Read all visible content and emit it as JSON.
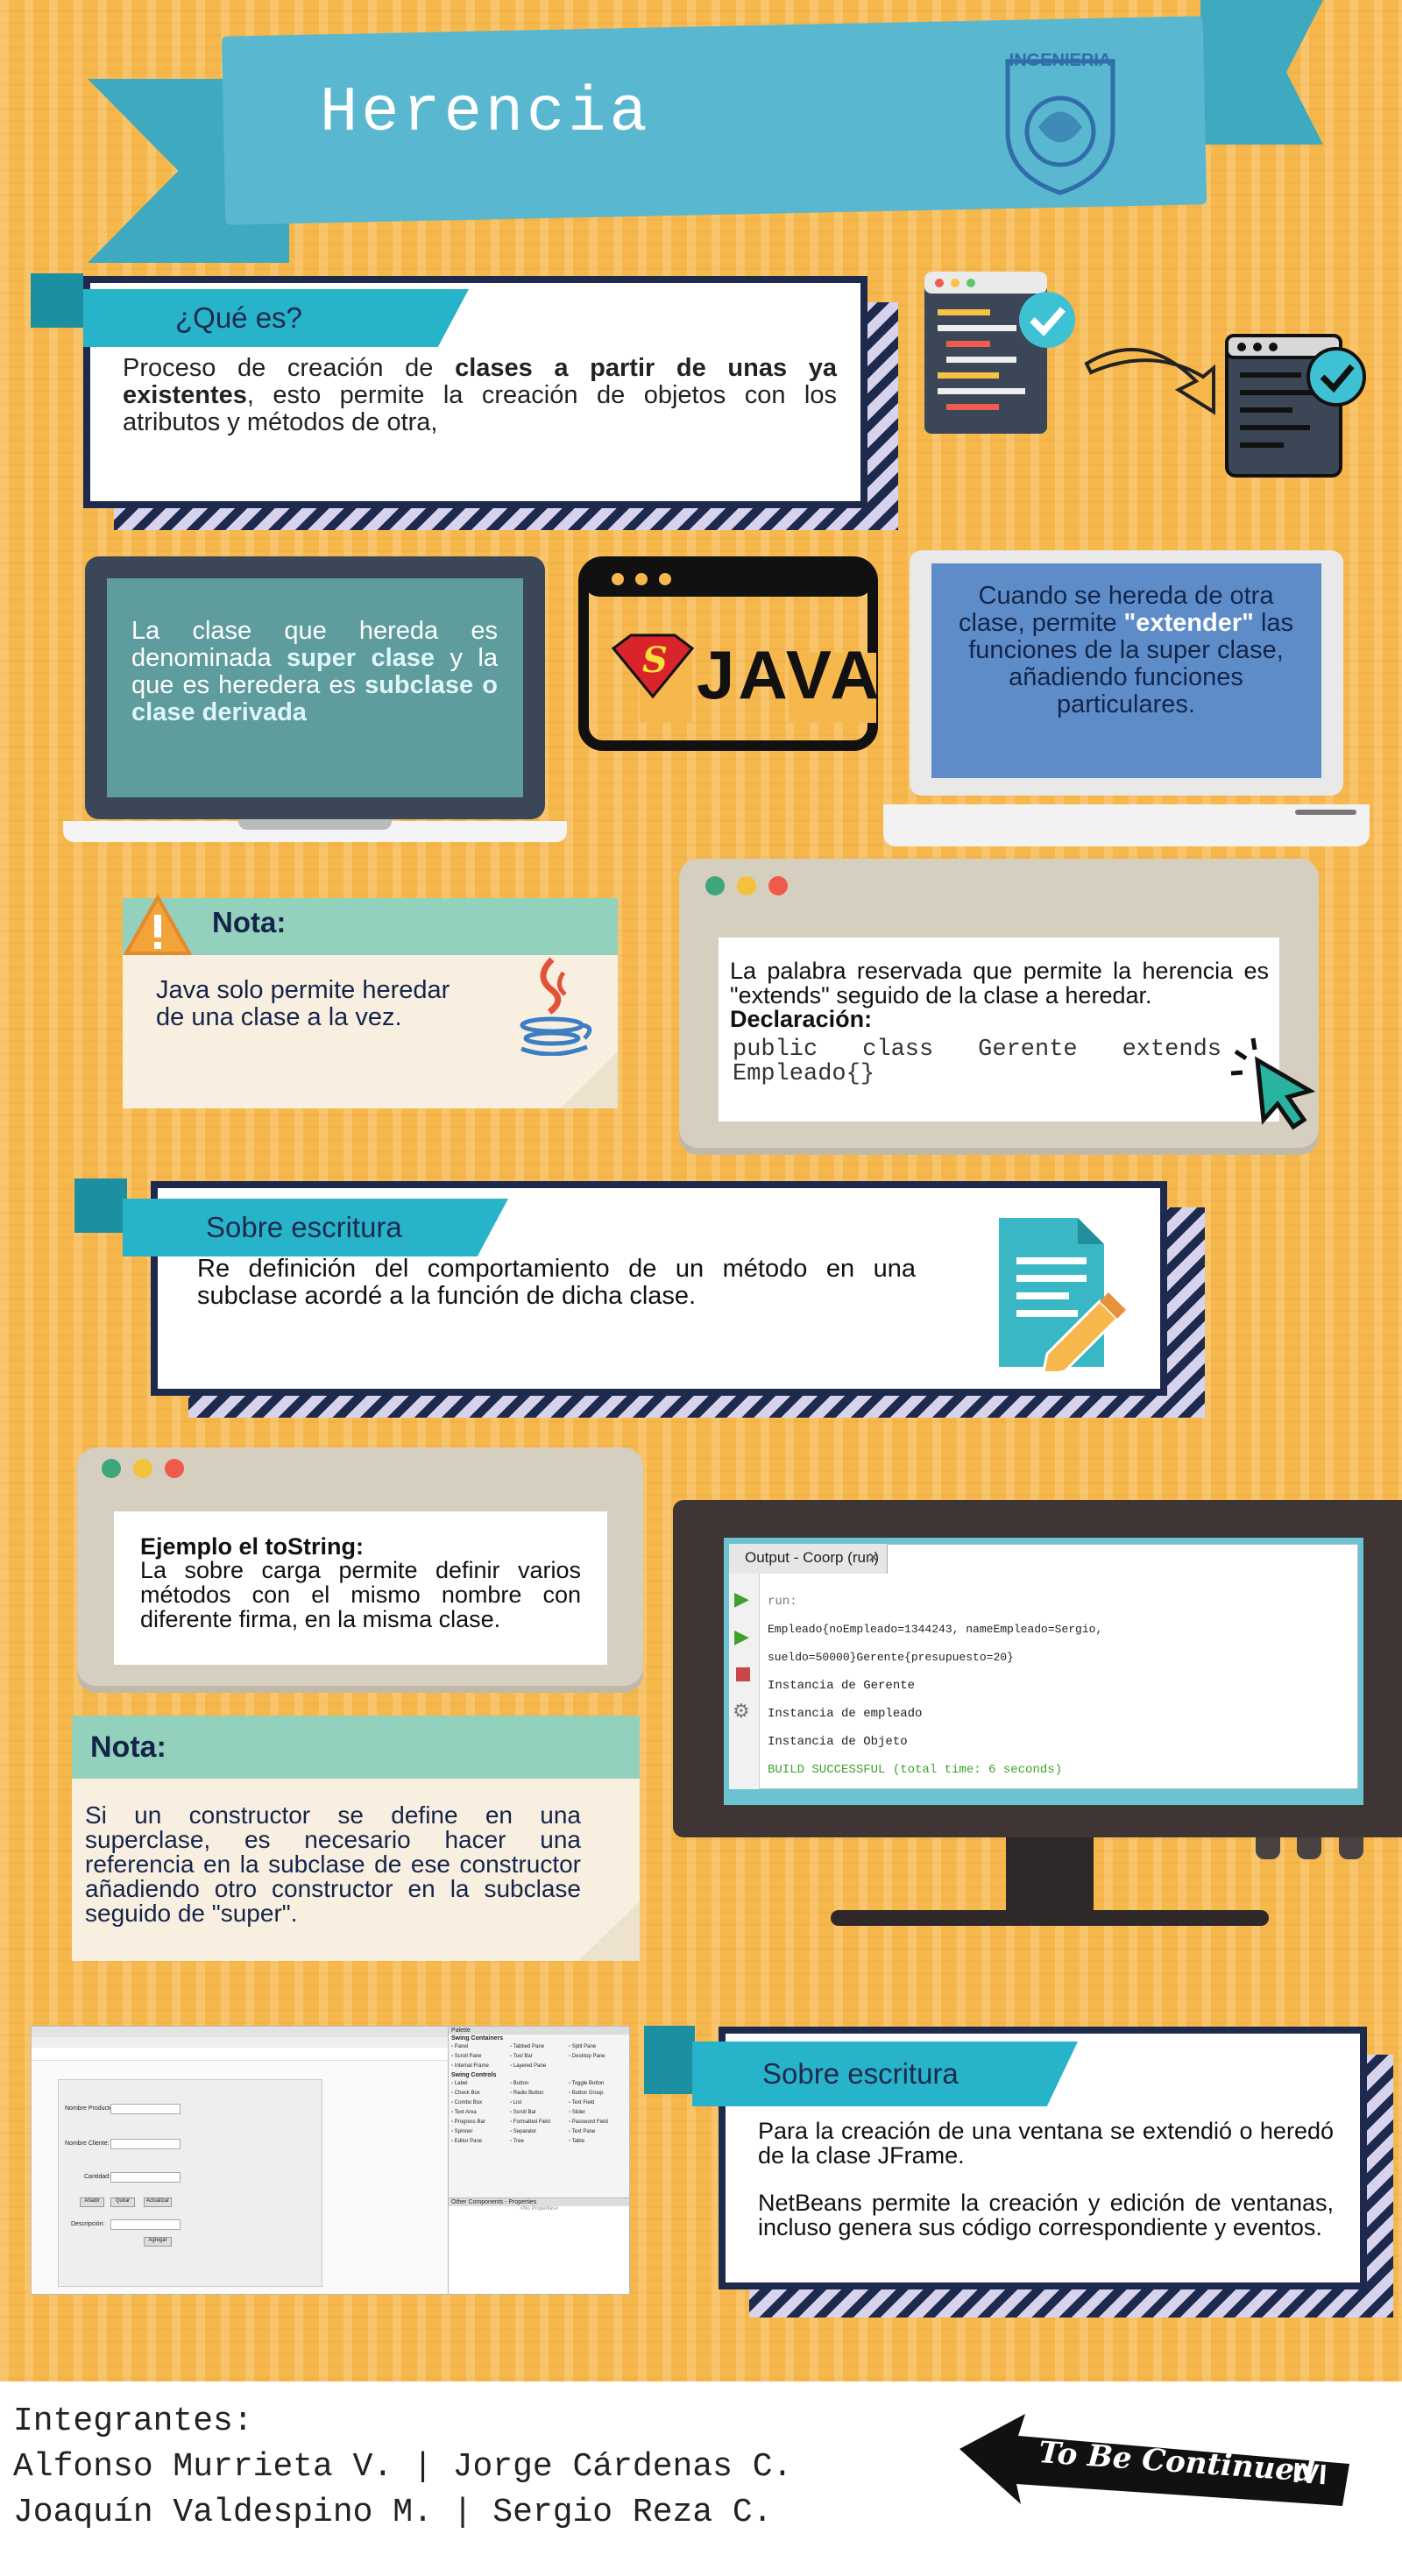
{
  "header": {
    "title": "Herencia",
    "seal_text": "INGENIERIA"
  },
  "que_es": {
    "tab": "¿Qué es?",
    "text_a": "Proceso de creación de ",
    "text_b": "clases a partir de unas ya existentes",
    "text_c": ", esto permite la creación de objetos con los atributos y métodos de otra,"
  },
  "clase": {
    "a": "La clase que hereda es denominada ",
    "b": "super clase",
    "c": " y la que es heredera es ",
    "d": "subclase o clase derivada"
  },
  "java_logo": {
    "text": "JAVA",
    "letter": "S"
  },
  "extender": {
    "a": "Cuando se hereda de otra clase, permite ",
    "b": "\"extender\"",
    "c": " las funciones de la super clase, añadiendo funciones particulares."
  },
  "nota1": {
    "title": "Nota:",
    "text": "Java solo permite heredar de una clase a la vez."
  },
  "extends_card": {
    "text": "La palabra reservada que permite la herencia es \"extends\" seguido de la clase a heredar.",
    "decl": "Declaración:",
    "code": "public class Gerente extends Empleado{}"
  },
  "sobre1": {
    "tab": "Sobre escritura",
    "text": "Re definición del comportamiento de un método en una subclase acordé a la función de dicha clase."
  },
  "tostring": {
    "title": "Ejemplo el toString:",
    "text": "La sobre carga permite definir varios métodos con el mismo nombre con diferente firma, en la misma clase."
  },
  "nota2": {
    "title": "Nota:",
    "text": "Si un constructor se define en una superclase, es necesario hacer una referencia en la subclase de ese constructor añadiendo otro constructor en la subclase seguido de  \"super\"."
  },
  "monitor": {
    "tab_title": "Output - Coorp (run)",
    "lines": [
      "run:",
      "Empleado{noEmpleado=1344243, nameEmpleado=Sergio, sueldo=50000}Gerente{presupuesto=20}",
      "Instancia de Gerente",
      "Instancia de empleado",
      "Instancia de Objeto"
    ],
    "build": "BUILD SUCCESSFUL (total time: 6 seconds)"
  },
  "netbeans": {
    "labels": [
      "Nombre Producto:",
      "Nombre Cliente:",
      "Cantidad:",
      "Descripción:"
    ],
    "buttons": [
      "Añadir",
      "Quitar",
      "Actualizar",
      "Agregar"
    ],
    "palette_title": "Palette",
    "palette_section": "Swing Containers",
    "palette_items": [
      "Panel",
      "Tabbed Pane",
      "Split Pane",
      "Scroll Pane",
      "Tool Bar",
      "Desktop Pane",
      "Internal Frame",
      "Layered Pane"
    ],
    "controls_section": "Swing Controls",
    "control_items": [
      "Label",
      "Button",
      "Toggle Button",
      "Check Box",
      "Radio Button",
      "Button Group",
      "Combo Box",
      "List",
      "Text Field",
      "Text Area",
      "Scroll Bar",
      "Slider",
      "Progress Bar",
      "Formatted Field",
      "Password Field",
      "Spinner",
      "Separator",
      "Text Pane",
      "Editor Pane",
      "Tree",
      "Table"
    ],
    "props_title": "Other Components - Properties",
    "props_placeholder": "<No Properties>"
  },
  "sobre2": {
    "tab": "Sobre escritura",
    "p1": "Para la creación de una ventana se extendió o heredó de la clase JFrame.",
    "p2": "NetBeans permite la creación y edición de ventanas, incluso genera sus código correspondiente y  eventos."
  },
  "footer": {
    "heading": "Integrantes:",
    "line1": "Alfonso Murrieta V. | Jorge Cárdenas C.",
    "line2": "Joaquín Valdespino M. | Sergio Reza C.",
    "arrow_text": "To Be Continued",
    "arrow_mark": "IVI"
  }
}
